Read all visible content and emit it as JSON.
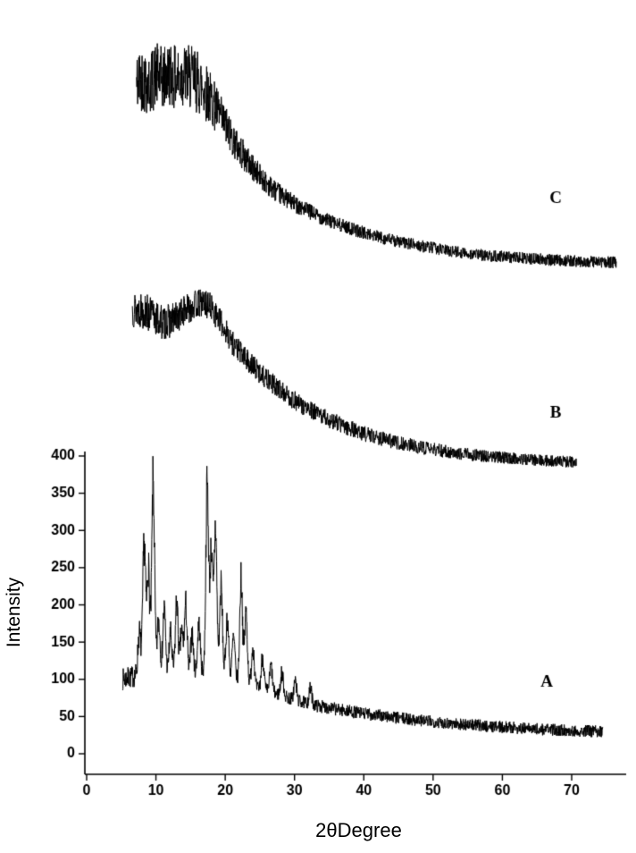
{
  "chart_data": {
    "type": "line",
    "title": "",
    "xlabel": "2θDegree",
    "ylabel": "Intensity",
    "line_color": "#000000",
    "background_color": "#ffffff",
    "x_axis": {
      "min": 0,
      "max": 78,
      "ticks": [
        0,
        10,
        20,
        30,
        40,
        50,
        60,
        70
      ]
    },
    "y_axis": {
      "min": 0,
      "max": 400,
      "ticks": [
        0,
        50,
        100,
        150,
        200,
        250,
        300,
        350,
        400
      ]
    },
    "legend": "none",
    "grid": false,
    "description": "Three stacked noisy powder XRD traces. Curve A (bottom, crystalline, many sharp peaks between 2-theta 7 and 33 on a decaying background). Curves B and C are amorphous halos vertically offset above the labeled axis range.",
    "series": [
      {
        "name": "A",
        "label": "A",
        "label_pos": {
          "x": 66.4,
          "y": 96
        },
        "x_range": [
          5.2,
          74.5
        ],
        "peak_width": 0.28,
        "envelope": [
          [
            5.2,
            100
          ],
          [
            6.5,
            103
          ],
          [
            8,
            108
          ],
          [
            10,
            112
          ],
          [
            12,
            106
          ],
          [
            14,
            104
          ],
          [
            16,
            108
          ],
          [
            18,
            112
          ],
          [
            20,
            104
          ],
          [
            22,
            98
          ],
          [
            24,
            90
          ],
          [
            26,
            84
          ],
          [
            28,
            79
          ],
          [
            30,
            72
          ],
          [
            33,
            65
          ],
          [
            36,
            60
          ],
          [
            40,
            54
          ],
          [
            45,
            48
          ],
          [
            50,
            43
          ],
          [
            55,
            39
          ],
          [
            60,
            36
          ],
          [
            65,
            33
          ],
          [
            70,
            31
          ],
          [
            74.5,
            30
          ]
        ],
        "peaks": [
          [
            7.6,
            55
          ],
          [
            8.3,
            175
          ],
          [
            8.9,
            140
          ],
          [
            9.6,
            255
          ],
          [
            10.4,
            70
          ],
          [
            11.2,
            85
          ],
          [
            12.1,
            55
          ],
          [
            13.0,
            100
          ],
          [
            13.7,
            60
          ],
          [
            14.3,
            95
          ],
          [
            15.2,
            55
          ],
          [
            16.2,
            65
          ],
          [
            17.4,
            250
          ],
          [
            18.0,
            160
          ],
          [
            18.6,
            195
          ],
          [
            19.4,
            120
          ],
          [
            20.3,
            80
          ],
          [
            21.2,
            55
          ],
          [
            22.3,
            140
          ],
          [
            23.0,
            95
          ],
          [
            24.0,
            55
          ],
          [
            25.4,
            45
          ],
          [
            26.6,
            35
          ],
          [
            28.2,
            30
          ],
          [
            30.1,
            26
          ],
          [
            32.3,
            20
          ]
        ],
        "noise": {
          "base": 8,
          "taper_amp": 7,
          "flat_until": 7,
          "taper_decay": 12,
          "prop": 0.1
        }
      },
      {
        "name": "B",
        "label": "B",
        "label_pos": {
          "x": 67.7,
          "y": 458
        },
        "x_range": [
          6.6,
          70.7
        ],
        "peak_width": 0.3,
        "envelope": [
          [
            6.6,
            598
          ],
          [
            8,
            596
          ],
          [
            9.5,
            588
          ],
          [
            11,
            579
          ],
          [
            12.5,
            583
          ],
          [
            14,
            594
          ],
          [
            15.5,
            603
          ],
          [
            16.8,
            606
          ],
          [
            18,
            600
          ],
          [
            19.5,
            577
          ],
          [
            21,
            553
          ],
          [
            23,
            530
          ],
          [
            25,
            512
          ],
          [
            27,
            496
          ],
          [
            29,
            481
          ],
          [
            31,
            468
          ],
          [
            34,
            453
          ],
          [
            37,
            441
          ],
          [
            40,
            430
          ],
          [
            44,
            420
          ],
          [
            48,
            412
          ],
          [
            52,
            406
          ],
          [
            56,
            401
          ],
          [
            60,
            398
          ],
          [
            64,
            395
          ],
          [
            68,
            393
          ],
          [
            70.7,
            392
          ]
        ],
        "peaks": [],
        "noise": {
          "base": 7,
          "taper_amp": 18,
          "flat_until": 10,
          "taper_decay": 18,
          "prop": 0
        }
      },
      {
        "name": "C",
        "label": "C",
        "label_pos": {
          "x": 67.7,
          "y": 746
        },
        "x_range": [
          7.2,
          76.5
        ],
        "peak_width": 0.3,
        "envelope": [
          [
            7.2,
            900
          ],
          [
            8,
            908
          ],
          [
            9,
            898
          ],
          [
            10,
            912
          ],
          [
            11,
            905
          ],
          [
            12,
            915
          ],
          [
            13,
            905
          ],
          [
            14,
            912
          ],
          [
            15,
            908
          ],
          [
            16,
            903
          ],
          [
            17,
            893
          ],
          [
            18,
            878
          ],
          [
            19,
            861
          ],
          [
            20,
            844
          ],
          [
            21,
            828
          ],
          [
            22,
            812
          ],
          [
            23,
            799
          ],
          [
            24,
            787
          ],
          [
            25,
            776
          ],
          [
            26,
            767
          ],
          [
            27,
            758
          ],
          [
            28,
            751
          ],
          [
            29,
            745
          ],
          [
            30,
            739
          ],
          [
            32,
            729
          ],
          [
            34,
            720
          ],
          [
            36,
            712
          ],
          [
            38,
            706
          ],
          [
            40,
            700
          ],
          [
            43,
            692
          ],
          [
            46,
            686
          ],
          [
            49,
            681
          ],
          [
            52,
            676
          ],
          [
            55,
            672
          ],
          [
            58,
            669
          ],
          [
            61,
            667
          ],
          [
            64,
            665
          ],
          [
            68,
            663
          ],
          [
            72,
            661
          ],
          [
            76.5,
            660
          ]
        ],
        "peaks": [],
        "noise": {
          "base": 8,
          "taper_amp": 36,
          "flat_until": 16.5,
          "taper_decay": 6,
          "prop": 0
        }
      }
    ]
  }
}
